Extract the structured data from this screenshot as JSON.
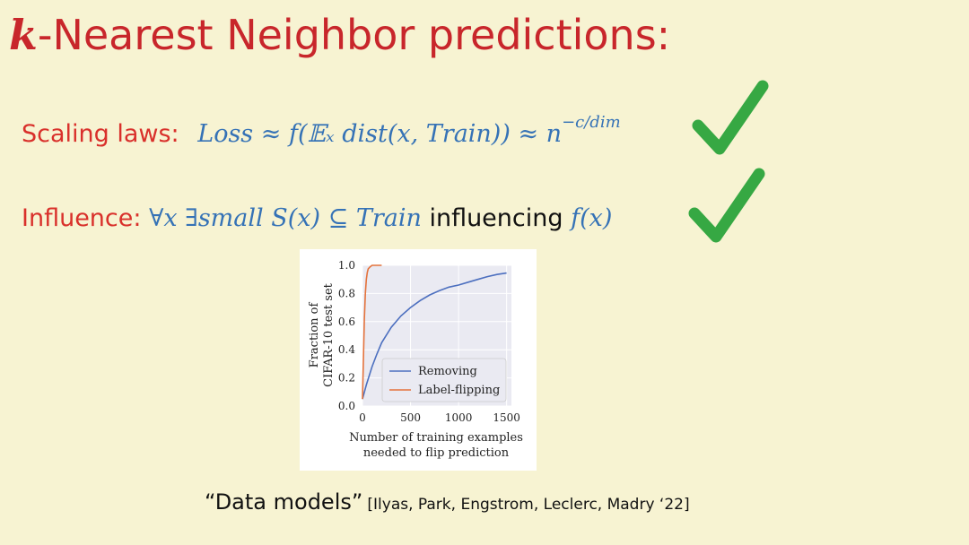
{
  "title": {
    "k": "k",
    "rest": "-Nearest Neighbor predictions:"
  },
  "scaling": {
    "label": "Scaling laws:",
    "formula": "Loss ≈ f(𝔼ₓ dist(x, Train)) ≈ n",
    "exponent": "−c/dim"
  },
  "influence": {
    "label": "Influence:",
    "formula1": "∀x ∃small S(x) ⊆ Train",
    "word": "influencing",
    "formula2": "f(x)"
  },
  "checks": {
    "icon": "checkmark-icon",
    "color": "#36a843"
  },
  "citation": {
    "quote": "“Data models”",
    "authors": "[Ilyas, Park, Engstrom, Leclerc, Madry ‘22]"
  },
  "chart_data": {
    "type": "line",
    "xlabel": "Number of training examples\nneeded to flip prediction",
    "ylabel": "Fraction of\nCIFAR-10 test set",
    "xlim": [
      0,
      1550
    ],
    "ylim": [
      0,
      1.0
    ],
    "xticks": [
      "0",
      "500",
      "1000",
      "1500"
    ],
    "yticks": [
      "0.0",
      "0.2",
      "0.4",
      "0.6",
      "0.8",
      "1.0"
    ],
    "grid": true,
    "legend_position": "lower-right",
    "series": [
      {
        "name": "Removing",
        "color": "#4c6fbf",
        "x": [
          0,
          40,
          100,
          150,
          200,
          300,
          400,
          500,
          600,
          700,
          800,
          900,
          1000,
          1100,
          1200,
          1300,
          1400,
          1500
        ],
        "y": [
          0.05,
          0.15,
          0.28,
          0.37,
          0.45,
          0.56,
          0.64,
          0.7,
          0.75,
          0.79,
          0.82,
          0.845,
          0.86,
          0.88,
          0.9,
          0.92,
          0.935,
          0.945
        ]
      },
      {
        "name": "Label-flipping",
        "color": "#e4733d",
        "x": [
          0,
          10,
          20,
          30,
          40,
          50,
          60,
          80,
          100,
          150,
          200
        ],
        "y": [
          0.05,
          0.35,
          0.62,
          0.8,
          0.9,
          0.95,
          0.975,
          0.99,
          1.0,
          1.0,
          1.0
        ]
      }
    ]
  }
}
